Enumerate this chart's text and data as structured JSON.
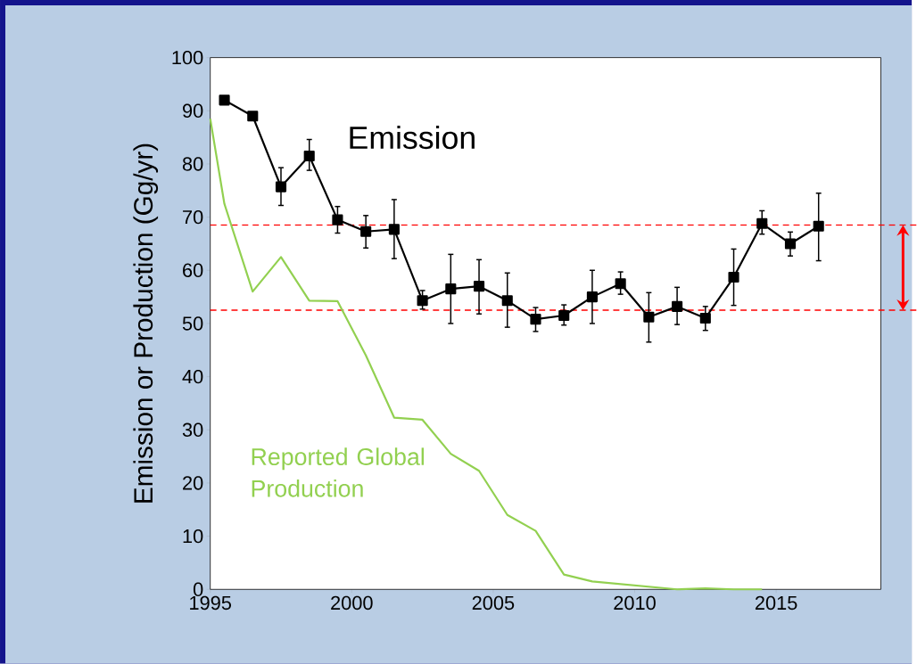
{
  "chart_data": {
    "type": "line",
    "ylabel": "Emission or Production (Gg/yr)",
    "xlim": [
      1995,
      2018.7
    ],
    "ylim": [
      0,
      100
    ],
    "xticks": [
      1995,
      2000,
      2005,
      2010,
      2015
    ],
    "yticks": [
      0,
      10,
      20,
      30,
      40,
      50,
      60,
      70,
      80,
      90,
      100
    ],
    "series": [
      {
        "name": "Emission",
        "color": "#000000",
        "marker": "square",
        "x": [
          1995.5,
          1996.5,
          1997.5,
          1998.5,
          1999.5,
          2000.5,
          2001.5,
          2002.5,
          2003.5,
          2004.5,
          2005.5,
          2006.5,
          2007.5,
          2008.5,
          2009.5,
          2010.5,
          2011.5,
          2012.5,
          2013.5,
          2014.5,
          2015.5,
          2016.5
        ],
        "values": [
          92,
          89,
          75.7,
          81.5,
          69.5,
          67.3,
          67.7,
          54.3,
          56.5,
          57,
          54.3,
          50.8,
          51.5,
          55,
          57.5,
          51.2,
          53.2,
          51,
          58.7,
          68.8,
          65,
          68.3
        ],
        "errors": [
          null,
          null,
          [
            72.2,
            79.3
          ],
          [
            78.8,
            84.6
          ],
          [
            67,
            72
          ],
          [
            64.2,
            70.3
          ],
          [
            62.2,
            73.3
          ],
          [
            52.7,
            56.2
          ],
          [
            50,
            63
          ],
          [
            51.8,
            62
          ],
          [
            49.3,
            59.5
          ],
          [
            48.5,
            53
          ],
          [
            49.7,
            53.5
          ],
          [
            50,
            60
          ],
          [
            55.5,
            59.7
          ],
          [
            46.5,
            55.8
          ],
          [
            49.8,
            56.8
          ],
          [
            48.7,
            53.2
          ],
          [
            53.4,
            64
          ],
          [
            66.8,
            71.2
          ],
          [
            62.7,
            67.2
          ],
          [
            61.8,
            74.5
          ]
        ]
      },
      {
        "name": "Reported Global Production",
        "color": "#92d050",
        "marker": "none",
        "x": [
          1995,
          1995.5,
          1996.5,
          1997.5,
          1998.5,
          1999.5,
          2000.5,
          2001.5,
          2002.5,
          2003.5,
          2004.5,
          2005.5,
          2006.5,
          2007.5,
          2008.5,
          2009.5,
          2010.5,
          2011.5,
          2012.5,
          2013.5,
          2014.5
        ],
        "values": [
          88.5,
          72.5,
          56,
          62.5,
          54.3,
          54.2,
          44,
          32.3,
          31.9,
          25.5,
          22.3,
          14,
          11,
          2.8,
          1.5,
          1,
          0.5,
          0,
          0.2,
          0,
          0
        ]
      }
    ],
    "ref_lines": [
      {
        "axis": "y",
        "value": 68.5,
        "color": "#ff0000",
        "line_style": "dashed"
      },
      {
        "axis": "y",
        "value": 52.5,
        "color": "#ff0000",
        "line_style": "dashed"
      }
    ]
  }
}
